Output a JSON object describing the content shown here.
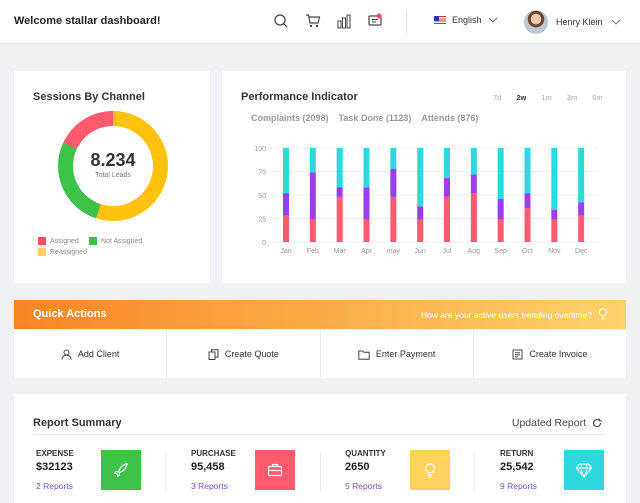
{
  "header": {
    "welcome": "Welcome stallar dashboard!",
    "icons": [
      "search-icon",
      "cart-icon",
      "bar-chart-icon",
      "message-icon"
    ],
    "language": "English",
    "user_name": "Henry Klein"
  },
  "sessions": {
    "title": "Sessions By Channel",
    "total_value": "8.234",
    "total_label": "Total Leads",
    "slices": [
      {
        "label": "Reassigned",
        "value": 55,
        "color": "#ffc20e"
      },
      {
        "label": "Not Assigned",
        "value": 27,
        "color": "#3ec34a"
      },
      {
        "label": "Assigned",
        "value": 18,
        "color": "#ff5a6e"
      }
    ],
    "legend": [
      "Assigned",
      "Not Assigned",
      "Reassigned"
    ]
  },
  "performance": {
    "title": "Performance Indicator",
    "chips": [
      "Complaints (2098)",
      "Task Done (1123)",
      "Attends (876)"
    ],
    "ranges": [
      "7d",
      "2w",
      "1m",
      "3m",
      "6m"
    ],
    "active_range": "2w"
  },
  "chart_data": {
    "type": "bar",
    "stacked": true,
    "categories": [
      "Jan",
      "Feb",
      "Mar",
      "Apr",
      "may",
      "Jun",
      "Jul",
      "Aug",
      "Sep",
      "Oct",
      "Nov",
      "Dec"
    ],
    "series": [
      {
        "color": "#ff5a6e",
        "values": [
          28,
          24,
          48,
          24,
          48,
          24,
          48,
          52,
          24,
          36,
          24,
          28
        ]
      },
      {
        "color": "#9b3ee8",
        "values": [
          24,
          50,
          10,
          34,
          30,
          14,
          20,
          20,
          22,
          16,
          10,
          14
        ]
      },
      {
        "color": "#2fd7de",
        "values": [
          48,
          26,
          42,
          42,
          22,
          62,
          32,
          28,
          54,
          48,
          66,
          58
        ]
      }
    ],
    "ylim": [
      0,
      100
    ],
    "yticks": [
      0,
      25,
      50,
      75,
      100
    ],
    "grid": true
  },
  "quick_actions": {
    "title": "Quick Actions",
    "hint": "How are your active users trending overtime?",
    "items": [
      {
        "label": "Add Client",
        "icon": "user-icon"
      },
      {
        "label": "Create Quote",
        "icon": "document-copy-icon"
      },
      {
        "label": "Enter Payment",
        "icon": "folder-icon"
      },
      {
        "label": "Create Invoice",
        "icon": "invoice-icon"
      }
    ]
  },
  "report": {
    "title": "Report Summary",
    "updated": "Updated Report",
    "stats": [
      {
        "label": "EXPENSE",
        "value": "$32123",
        "link": "2 Reports",
        "color": "#3ec34a",
        "icon": "rocket-icon"
      },
      {
        "label": "PURCHASE",
        "value": "95,458",
        "link": "3 Reports",
        "color": "#ff5a6e",
        "icon": "briefcase-icon"
      },
      {
        "label": "QUANTITY",
        "value": "2650",
        "link": "5 Reports",
        "color": "#ffd25e",
        "icon": "lightbulb-icon"
      },
      {
        "label": "RETURN",
        "value": "25,542",
        "link": "9 Reports",
        "color": "#2fd7de",
        "icon": "diamond-icon"
      }
    ]
  }
}
